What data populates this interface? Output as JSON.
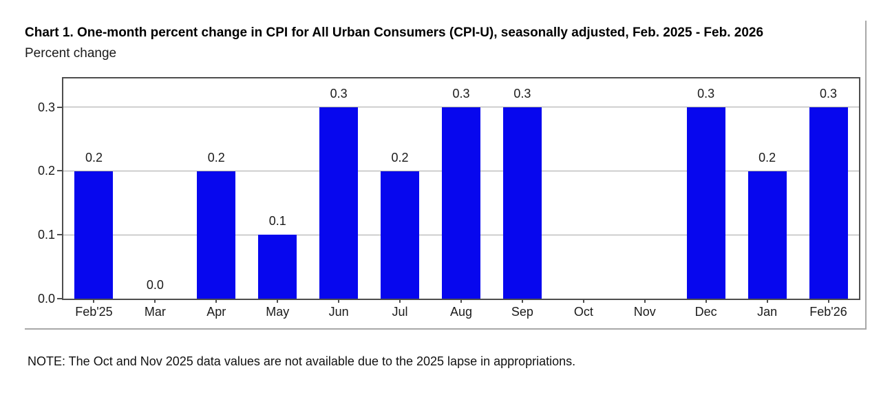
{
  "figure": {
    "note": "NOTE: The Oct and Nov 2025 data values are not available due to the 2025 lapse in appropriations."
  },
  "chart_data": {
    "type": "bar",
    "title": "Chart 1. One-month percent change in CPI for All Urban Consumers (CPI-U), seasonally adjusted, Feb. 2025 - Feb. 2026",
    "ylabel": "Percent change",
    "categories": [
      "Feb'25",
      "Mar",
      "Apr",
      "May",
      "Jun",
      "Jul",
      "Aug",
      "Sep",
      "Oct",
      "Nov",
      "Dec",
      "Jan",
      "Feb'26"
    ],
    "values": [
      0.2,
      0.0,
      0.2,
      0.1,
      0.3,
      0.2,
      0.3,
      0.3,
      null,
      null,
      0.3,
      0.2,
      0.3
    ],
    "missing_categories": [
      "Oct",
      "Nov"
    ],
    "yticks": [
      0.0,
      0.1,
      0.2,
      0.3
    ],
    "ylim": [
      0,
      0.345
    ],
    "value_label_decimals": 1,
    "bar_color": "#0707ee",
    "gridline_color": "#a6a6a6",
    "axis_border_color": "#4d4d4d",
    "grid": true,
    "legend_position": "none"
  }
}
